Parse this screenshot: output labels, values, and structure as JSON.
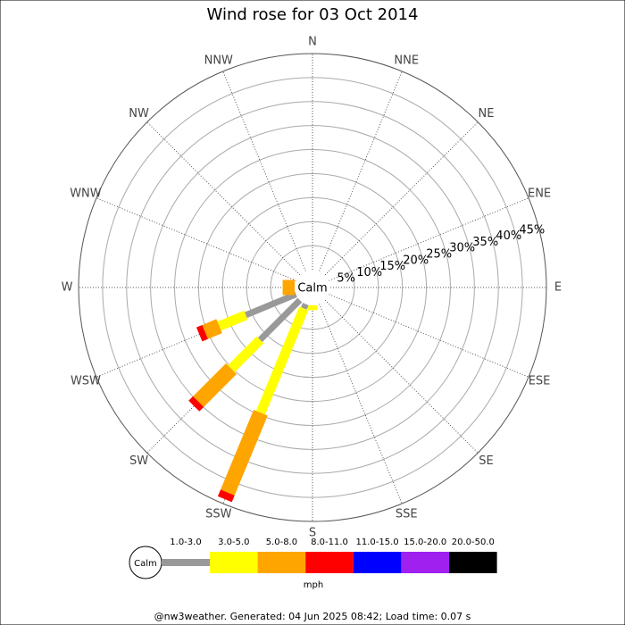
{
  "chart_data": {
    "type": "windrose",
    "title": "Wind rose for 03 Oct 2014",
    "calm_label": "Calm",
    "units": "mph",
    "footer": "@nw3weather. Generated: 04 Jun 2025 08:42; Load time: 0.07 s",
    "categories": [
      "N",
      "NNE",
      "NE",
      "ENE",
      "E",
      "ESE",
      "SE",
      "SSE",
      "S",
      "SSW",
      "SW",
      "WSW",
      "W",
      "WNW",
      "NW",
      "NNW"
    ],
    "rlim": [
      0,
      45
    ],
    "rticks": [
      {
        "value": 5,
        "label": "5%"
      },
      {
        "value": 10,
        "label": "10%"
      },
      {
        "value": 15,
        "label": "15%"
      },
      {
        "value": 20,
        "label": "20%"
      },
      {
        "value": 25,
        "label": "25%"
      },
      {
        "value": 30,
        "label": "30%"
      },
      {
        "value": 35,
        "label": "35%"
      },
      {
        "value": 40,
        "label": "40%"
      },
      {
        "value": 45,
        "label": "45%"
      }
    ],
    "series": [
      {
        "name": "1.0-3.0",
        "color": "#999999",
        "values": [
          0,
          0,
          0,
          0,
          0,
          0,
          0,
          0,
          0,
          1,
          11.7,
          11.3,
          0,
          0,
          0,
          0
        ]
      },
      {
        "name": "3.0-5.0",
        "color": "#ffff00",
        "values": [
          0,
          0,
          0,
          0,
          0,
          0,
          0,
          0,
          1,
          23.5,
          8.5,
          6,
          0,
          0,
          0,
          0
        ]
      },
      {
        "name": "5.0-8.0",
        "color": "#ffa500",
        "values": [
          0,
          0,
          0,
          0,
          0,
          0,
          0,
          0,
          0,
          18,
          9.7,
          3.2,
          2.5,
          0,
          0,
          0
        ]
      },
      {
        "name": "8.0-11.0",
        "color": "#ff0000",
        "values": [
          0,
          0,
          0,
          0,
          0,
          0,
          0,
          0,
          0,
          1.5,
          1.3,
          1.3,
          0,
          0,
          0,
          0
        ]
      },
      {
        "name": "11.0-15.0",
        "color": "#0000ff",
        "values": [
          0,
          0,
          0,
          0,
          0,
          0,
          0,
          0,
          0,
          0,
          0,
          0,
          0,
          0,
          0,
          0
        ]
      },
      {
        "name": "15.0-20.0",
        "color": "#a020f0",
        "values": [
          0,
          0,
          0,
          0,
          0,
          0,
          0,
          0,
          0,
          0,
          0,
          0,
          0,
          0,
          0,
          0
        ]
      },
      {
        "name": "20.0-50.0",
        "color": "#000000",
        "values": [
          0,
          0,
          0,
          0,
          0,
          0,
          0,
          0,
          0,
          0,
          0,
          0,
          0,
          0,
          0,
          0
        ]
      }
    ]
  }
}
